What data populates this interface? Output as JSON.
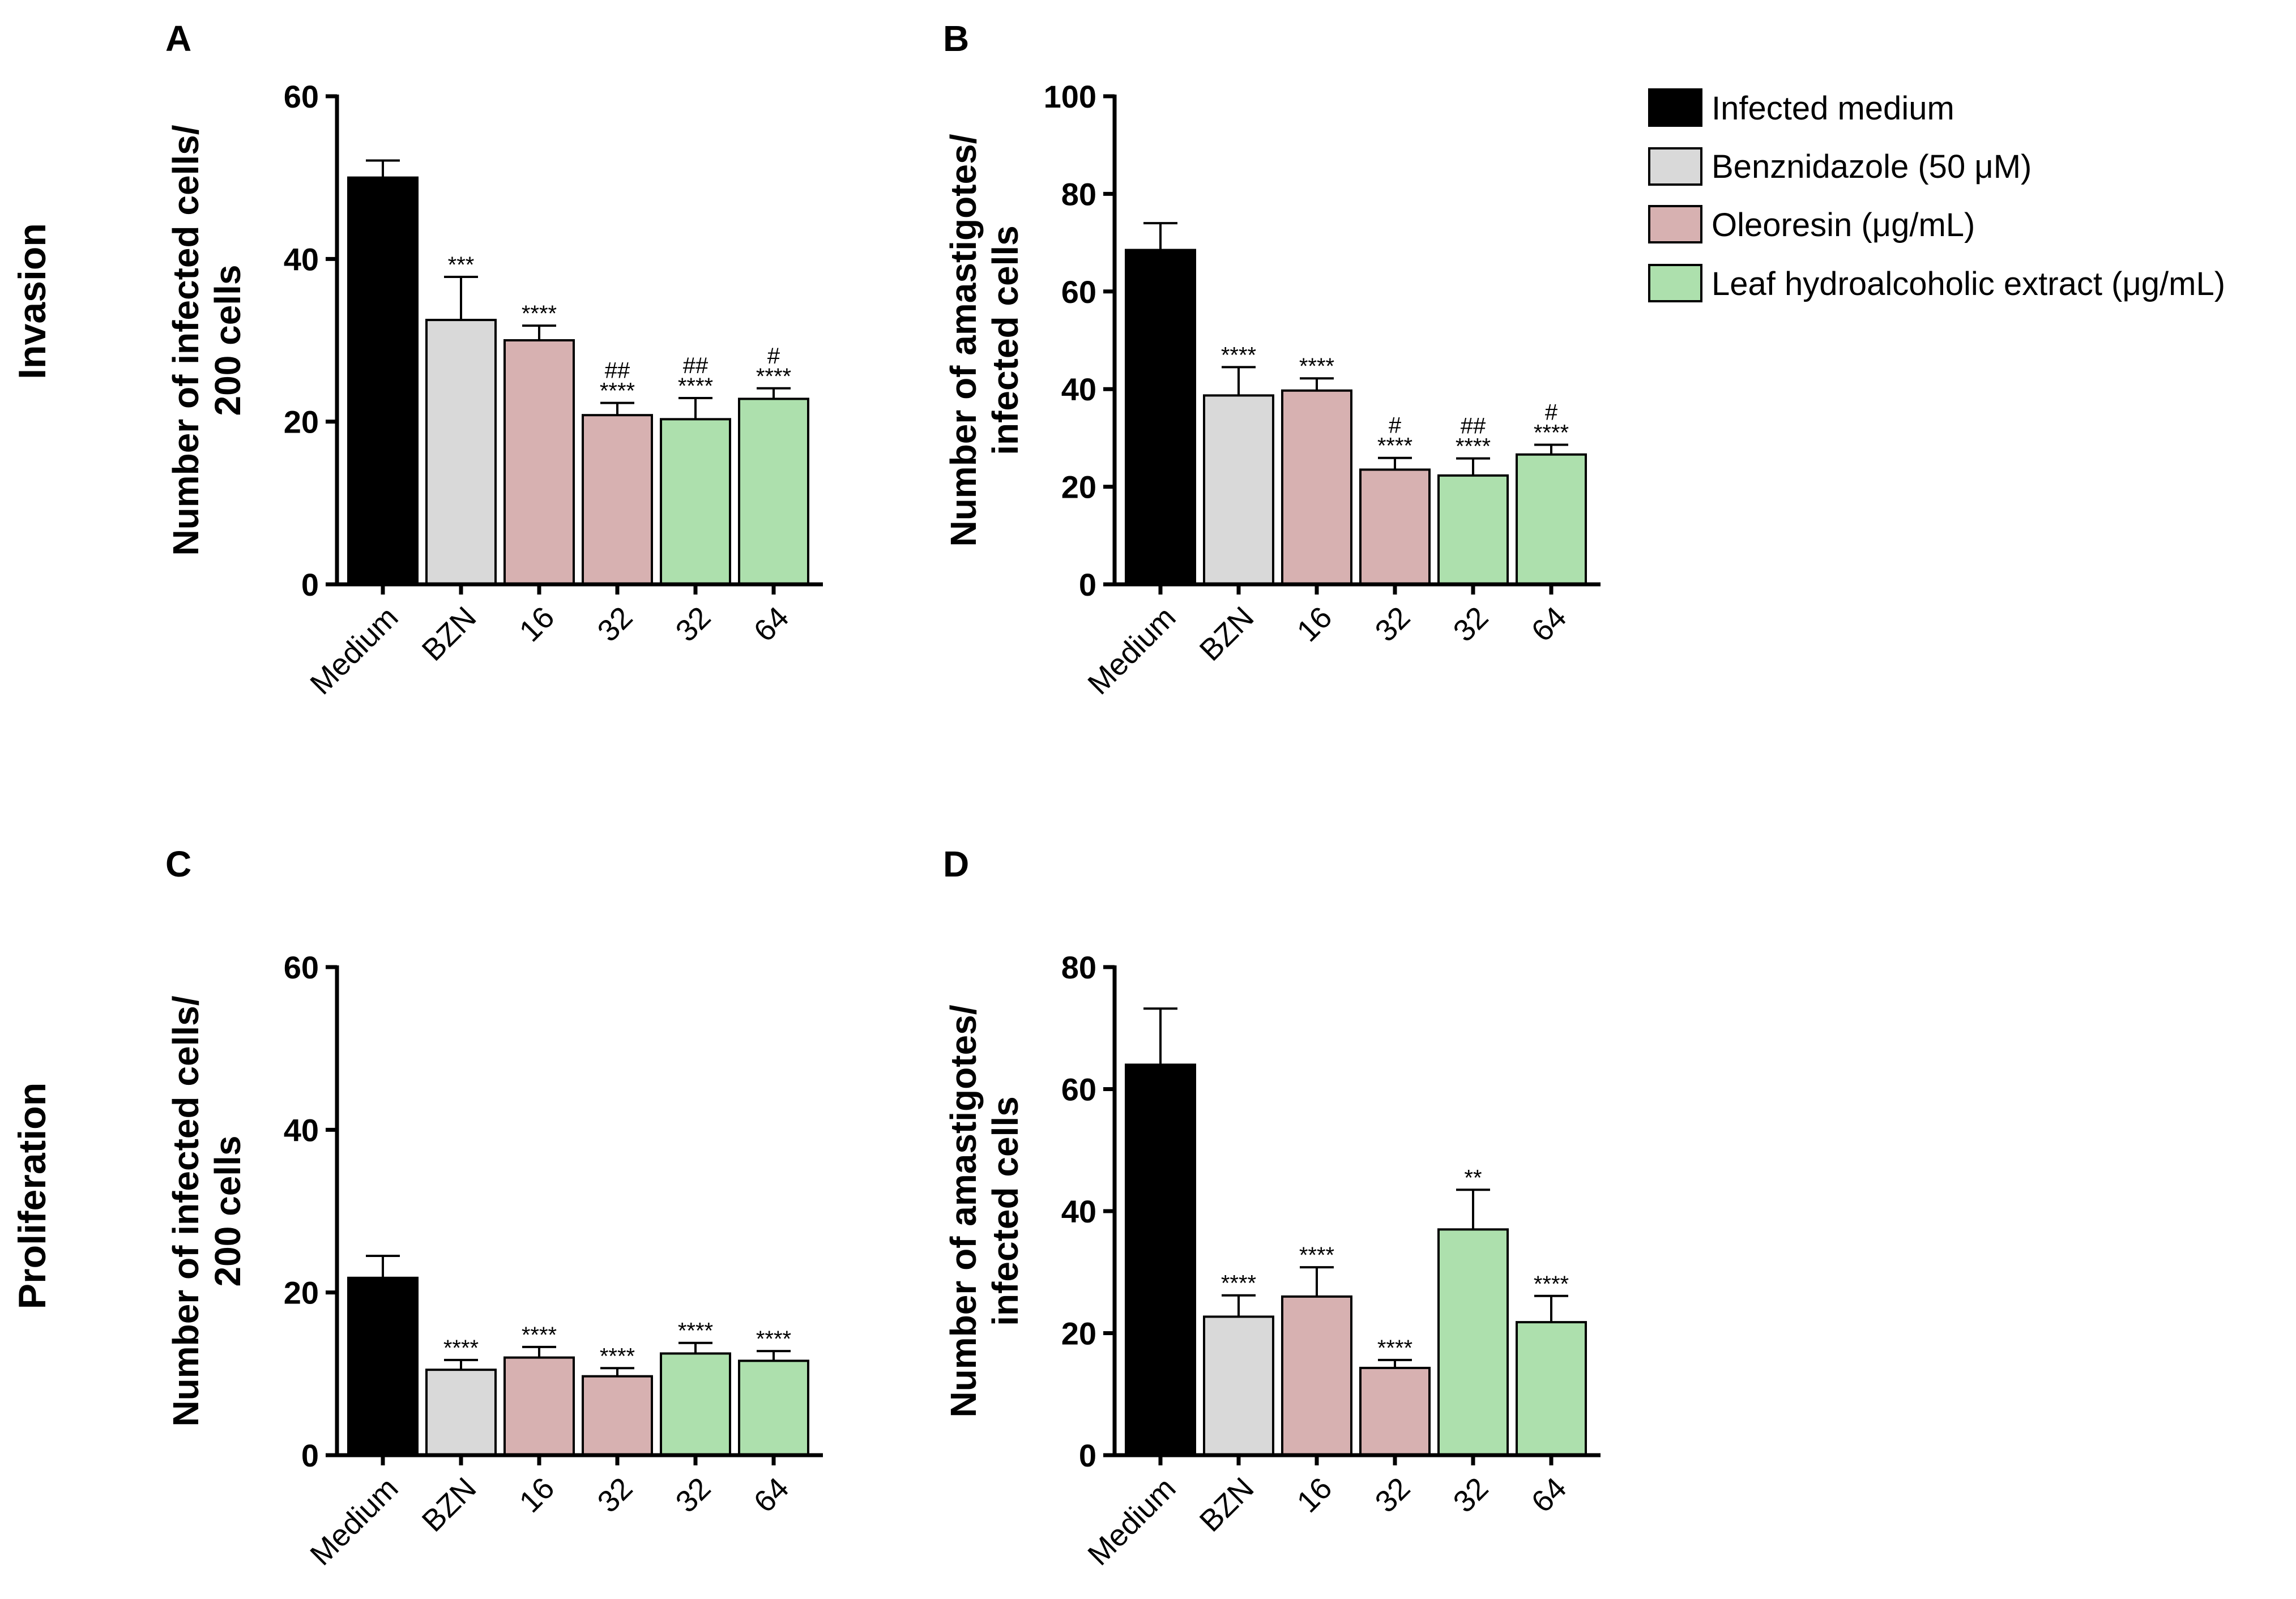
{
  "row_labels": [
    "Invasion",
    "Proliferation"
  ],
  "legend": [
    {
      "label": "Infected medium",
      "color": "#000000"
    },
    {
      "label": "Benznidazole (50 μM)",
      "color": "#d9d9d9"
    },
    {
      "label": "Oleoresin (μg/mL)",
      "color": "#d7b1b1"
    },
    {
      "label": "Leaf hydroalcoholic extract (μg/mL)",
      "color": "#ade0ad"
    }
  ],
  "chart_data": [
    {
      "panel": "A",
      "type": "bar",
      "ylabel_lines": [
        "Number of infected cells/",
        "200 cells"
      ],
      "ylim": [
        0,
        60
      ],
      "yticks": [
        0,
        20,
        40,
        60
      ],
      "categories": [
        "Medium",
        "BZN",
        "16",
        "32",
        "32",
        "64"
      ],
      "groups": [
        0,
        1,
        2,
        2,
        3,
        3
      ],
      "values": [
        50,
        32.5,
        30,
        20.8,
        20.3,
        22.8
      ],
      "errors": [
        2.1,
        5.3,
        1.8,
        1.5,
        2.6,
        1.3
      ],
      "significance": [
        [],
        [
          "***"
        ],
        [
          "****"
        ],
        [
          "##",
          "****"
        ],
        [
          "##",
          "****"
        ],
        [
          "#",
          "****"
        ]
      ]
    },
    {
      "panel": "B",
      "type": "bar",
      "ylabel_lines": [
        "Number of amastigotes/",
        "infected cells"
      ],
      "ylim": [
        0,
        100
      ],
      "yticks": [
        0,
        20,
        40,
        60,
        80,
        100
      ],
      "categories": [
        "Medium",
        "BZN",
        "16",
        "32",
        "32",
        "64"
      ],
      "groups": [
        0,
        1,
        2,
        2,
        3,
        3
      ],
      "values": [
        68.5,
        38.7,
        39.7,
        23.5,
        22.3,
        26.6
      ],
      "errors": [
        5.5,
        5.8,
        2.5,
        2.4,
        3.5,
        2
      ],
      "significance": [
        [],
        [
          "****"
        ],
        [
          "****"
        ],
        [
          "#",
          "****"
        ],
        [
          "##",
          "****"
        ],
        [
          "#",
          "****"
        ]
      ]
    },
    {
      "panel": "C",
      "type": "bar",
      "ylabel_lines": [
        "Number of infected cells/",
        "200 cells"
      ],
      "ylim": [
        0,
        60
      ],
      "yticks": [
        0,
        20,
        40,
        60
      ],
      "categories": [
        "Medium",
        "BZN",
        "16",
        "32",
        "32",
        "64"
      ],
      "groups": [
        0,
        1,
        2,
        2,
        3,
        3
      ],
      "values": [
        21.8,
        10.5,
        12,
        9.7,
        12.5,
        11.6
      ],
      "errors": [
        2.7,
        1.2,
        1.3,
        1,
        1.3,
        1.2
      ],
      "significance": [
        [],
        [
          "****"
        ],
        [
          "****"
        ],
        [
          "****"
        ],
        [
          "****"
        ],
        [
          "****"
        ]
      ]
    },
    {
      "panel": "D",
      "type": "bar",
      "ylabel_lines": [
        "Number of amastigotes/",
        "infected cells"
      ],
      "ylim": [
        0,
        80
      ],
      "yticks": [
        0,
        20,
        40,
        60,
        80
      ],
      "categories": [
        "Medium",
        "BZN",
        "16",
        "32",
        "32",
        "64"
      ],
      "groups": [
        0,
        1,
        2,
        2,
        3,
        3
      ],
      "values": [
        64,
        22.7,
        26,
        14.3,
        37,
        21.8
      ],
      "errors": [
        9.2,
        3.5,
        4.8,
        1.3,
        6.5,
        4.3
      ],
      "significance": [
        [],
        [
          "****"
        ],
        [
          "****"
        ],
        [
          "****"
        ],
        [
          "**"
        ],
        [
          "****"
        ]
      ]
    }
  ]
}
